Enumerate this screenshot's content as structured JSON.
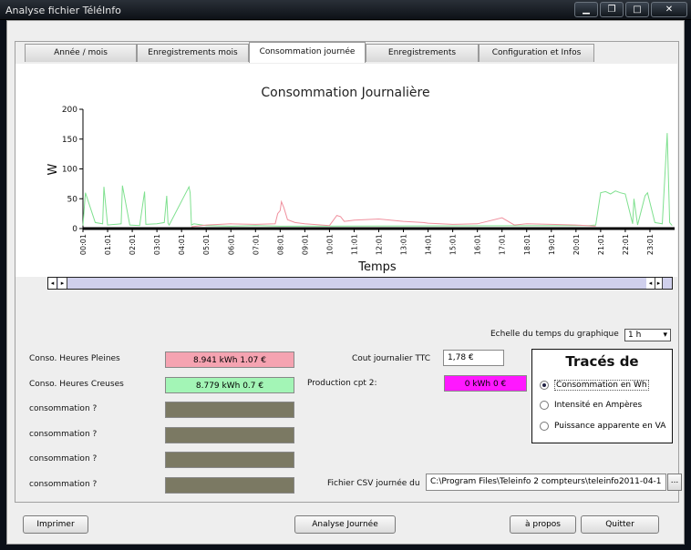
{
  "window": {
    "title": "Analyse fichier TéléInfo",
    "buttons": [
      "minimize",
      "restore",
      "maximize",
      "close"
    ]
  },
  "tabs": [
    {
      "label": "Année / mois",
      "active": false
    },
    {
      "label": "Enregistrements mois",
      "active": false
    },
    {
      "label": "Consommation journée",
      "active": true
    },
    {
      "label": "Enregistrements journée",
      "active": false
    },
    {
      "label": "Configuration et Infos",
      "active": false
    }
  ],
  "chart_data": {
    "type": "line",
    "title": "Consommation Journalière",
    "xlabel": "Temps",
    "ylabel": "W",
    "ylim": [
      0,
      200
    ],
    "yticks": [
      0,
      50,
      100,
      150,
      200
    ],
    "xtick_labels": [
      "00:01",
      "01:01",
      "02:01",
      "03:01",
      "04:01",
      "05:01",
      "06:01",
      "07:01",
      "08:01",
      "09:01",
      "10:01",
      "11:01",
      "12:01",
      "13:01",
      "14:01",
      "15:01",
      "16:01",
      "17:01",
      "18:01",
      "19:01",
      "20:01",
      "21:01",
      "22:01",
      "23:01"
    ],
    "grid": false,
    "series": [
      {
        "color": "#7fe08f",
        "x": [
          0,
          0.1,
          0.5,
          0.8,
          0.85,
          1.0,
          1.3,
          1.55,
          1.6,
          1.9,
          2.3,
          2.5,
          2.55,
          3.0,
          3.3,
          3.4,
          3.45,
          3.5,
          4.3,
          4.35,
          4.4,
          4.5,
          5.0,
          6.0,
          7.0,
          8.0,
          20.5,
          20.8,
          21.0,
          21.2,
          21.4,
          21.6,
          21.8,
          22.0,
          22.3,
          22.35,
          22.5,
          22.8,
          22.9,
          23.2,
          23.5,
          23.7,
          23.8,
          23.9
        ],
        "values": [
          5,
          60,
          10,
          8,
          70,
          6,
          7,
          8,
          72,
          6,
          5,
          62,
          7,
          8,
          10,
          55,
          9,
          6,
          70,
          60,
          6,
          8,
          5,
          4,
          5,
          4,
          5,
          6,
          60,
          62,
          58,
          63,
          60,
          58,
          8,
          50,
          6,
          55,
          60,
          10,
          8,
          160,
          10,
          5
        ]
      },
      {
        "color": "#f0909e",
        "x": [
          4.4,
          5.0,
          6.0,
          7.0,
          7.8,
          7.9,
          8.0,
          8.05,
          8.15,
          8.3,
          8.6,
          9.0,
          10.0,
          10.3,
          10.45,
          10.6,
          11.0,
          12.0,
          13.0,
          13.8,
          14.0,
          15.0,
          16.0,
          17.0,
          17.5,
          18.0,
          19.0,
          20.0,
          20.8
        ],
        "values": [
          3,
          6,
          8,
          7,
          8,
          25,
          30,
          45,
          35,
          15,
          10,
          8,
          5,
          22,
          20,
          12,
          14,
          16,
          12,
          10,
          9,
          7,
          8,
          18,
          6,
          8,
          7,
          6,
          4
        ]
      }
    ]
  },
  "scrollbar": {
    "left_arrows": "◂▸",
    "right_arrows": "◂▸"
  },
  "scale": {
    "label": "Echelle du temps du graphique",
    "value": "1 h"
  },
  "rows": [
    {
      "label": "Conso. Heures Pleines",
      "value": "8.941 kWh  1.07 €",
      "color": "#f5a3b1"
    },
    {
      "label": "Conso. Heures Creuses",
      "value": "8.779 kWh  0.7 €",
      "color": "#a3f5b6"
    },
    {
      "label": "consommation ?",
      "value": "",
      "color": "#7b7963"
    },
    {
      "label": "consommation ?",
      "value": "",
      "color": "#7b7963"
    },
    {
      "label": "consommation ?",
      "value": "",
      "color": "#7b7963"
    },
    {
      "label": "consommation ?",
      "value": "",
      "color": "#7b7963"
    }
  ],
  "cost": {
    "label": "Cout journalier TTC",
    "value": "1,78 €"
  },
  "production": {
    "label": "Production cpt 2:",
    "value": "0 kWh 0 €",
    "color": "#ff18ff"
  },
  "traces": {
    "heading": "Tracés de",
    "options": [
      {
        "label": "Consommation en Wh",
        "checked": true
      },
      {
        "label": "Intensité en Ampères",
        "checked": false
      },
      {
        "label": "Puissance apparente en VA",
        "checked": false
      }
    ]
  },
  "csv": {
    "label": "Fichier CSV journée du",
    "value": "C:\\Program Files\\Teleinfo 2 compteurs\\teleinfo2011-04-1",
    "browse": "..."
  },
  "buttons": {
    "print": "Imprimer",
    "analyse": "Analyse Journée",
    "about": "à propos",
    "quit": "Quitter"
  }
}
